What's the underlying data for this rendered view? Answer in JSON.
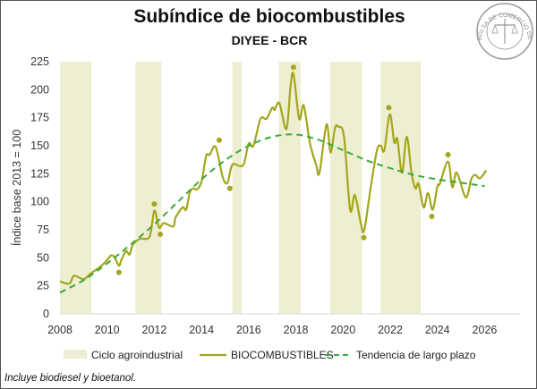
{
  "chart_data": {
    "type": "line",
    "title": "Subíndice de biocombustibles",
    "subtitle": "DIYEE - BCR",
    "xlabel": "",
    "ylabel": "Índice base 2013 = 100",
    "xlim": [
      2008,
      2027.5
    ],
    "ylim": [
      0,
      225
    ],
    "xticks": [
      2008,
      2010,
      2012,
      2014,
      2016,
      2018,
      2020,
      2022,
      2024,
      2026
    ],
    "yticks": [
      0,
      25,
      50,
      75,
      100,
      125,
      150,
      175,
      200,
      225
    ],
    "grid": false,
    "legend_position": "bottom",
    "bands": {
      "name": "Ciclo agroindustrial",
      "color": "#eeeed2",
      "ranges": [
        [
          2008.0,
          2009.33
        ],
        [
          2011.2,
          2012.3
        ],
        [
          2015.3,
          2015.7
        ],
        [
          2017.27,
          2018.2
        ],
        [
          2019.45,
          2020.8
        ],
        [
          2021.6,
          2023.3
        ]
      ]
    },
    "series": [
      {
        "name": "BIOCOMBUSTIBLES",
        "color": "#a4a61c",
        "x": [
          2008.0,
          2008.4,
          2008.6,
          2009.0,
          2009.3,
          2009.7,
          2010.0,
          2010.15,
          2010.3,
          2010.5,
          2010.6,
          2010.8,
          2010.95,
          2011.1,
          2011.4,
          2011.8,
          2012.0,
          2012.2,
          2012.4,
          2012.8,
          2012.9,
          2013.2,
          2013.35,
          2013.5,
          2013.65,
          2013.8,
          2014.0,
          2014.2,
          2014.35,
          2014.6,
          2014.9,
          2015.1,
          2015.3,
          2015.6,
          2015.8,
          2016.0,
          2016.2,
          2016.5,
          2016.75,
          2017.0,
          2017.1,
          2017.3,
          2017.6,
          2017.77,
          2017.9,
          2018.14,
          2018.33,
          2018.6,
          2018.86,
          2019.0,
          2019.3,
          2019.47,
          2019.66,
          2019.8,
          2020.04,
          2020.3,
          2020.5,
          2020.76,
          2020.9,
          2021.18,
          2021.44,
          2021.6,
          2021.75,
          2021.98,
          2022.17,
          2022.3,
          2022.5,
          2022.7,
          2022.9,
          2023.07,
          2023.2,
          2023.42,
          2023.6,
          2023.8,
          2024.0,
          2024.1,
          2024.45,
          2024.63,
          2024.82,
          2025.2,
          2025.43,
          2025.6,
          2025.8,
          2026.07
        ],
        "y": [
          29,
          27,
          34,
          31,
          36,
          42,
          48,
          52,
          51,
          43,
          48,
          56,
          53,
          62,
          67,
          69,
          92,
          77,
          81,
          78,
          86,
          95,
          93,
          108,
          112,
          111,
          118,
          141,
          142,
          149,
          122,
          117,
          133,
          132,
          134,
          152,
          150,
          174,
          174,
          184,
          182,
          188,
          165,
          202,
          214,
          174,
          186,
          152,
          133,
          126,
          169,
          144,
          166,
          167,
          158,
          93,
          106,
          80,
          75,
          114,
          146,
          150,
          146,
          178,
          153,
          156,
          126,
          158,
          126,
          112,
          116,
          95,
          108,
          93,
          114,
          116,
          136,
          113,
          126,
          104,
          120,
          124,
          121,
          128
        ]
      },
      {
        "name": "Tendencia de largo plazo",
        "color": "#3aaa3a",
        "style": "dashed",
        "x": [
          2008,
          2009,
          2010,
          2011,
          2012,
          2013,
          2014,
          2015,
          2016,
          2017,
          2018,
          2019,
          2020,
          2021,
          2022,
          2023,
          2024,
          2025,
          2026
        ],
        "y": [
          19,
          30,
          45,
          62,
          80,
          100,
          120,
          137,
          150,
          158,
          160,
          155,
          146,
          137,
          130,
          124,
          120,
          117,
          114
        ]
      }
    ],
    "markers": {
      "color": "#a4a61c",
      "points": [
        [
          2010.5,
          37
        ],
        [
          2012.0,
          98
        ],
        [
          2012.25,
          71
        ],
        [
          2014.75,
          155
        ],
        [
          2015.2,
          112
        ],
        [
          2017.9,
          220
        ],
        [
          2020.88,
          68
        ],
        [
          2021.94,
          184
        ],
        [
          2023.76,
          87
        ],
        [
          2024.45,
          142
        ]
      ]
    }
  },
  "logo": {
    "text": "BOLSA DE COMERCIO DE ROSARIO"
  },
  "footnote": "Incluye biodiesel y bioetanol."
}
